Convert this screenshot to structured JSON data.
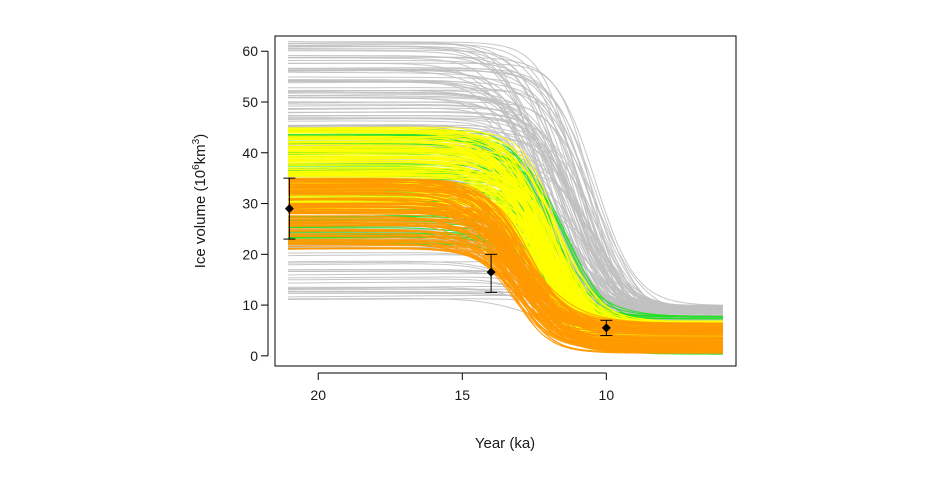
{
  "chart_data": {
    "type": "line",
    "title": "",
    "xlabel": "Year (ka)",
    "ylabel": {
      "prefix": "Ice volume (10",
      "exponent": "6",
      "unit": "km",
      "unit_exponent": "3",
      "suffix": ")"
    },
    "xlim": [
      21.5,
      5.5
    ],
    "ylim": [
      -2,
      63
    ],
    "x_ticks": [
      20,
      15,
      10
    ],
    "y_ticks": [
      0,
      10,
      20,
      30,
      40,
      50,
      60
    ],
    "grid": false,
    "legend": "none",
    "ensembles": [
      {
        "color": "#c0c0c0",
        "count": 170,
        "plateau_range": [
          11,
          62
        ],
        "final_range": [
          5,
          10
        ],
        "midpoint_range": [
          10.3,
          12.8
        ],
        "opacity": 0.9
      },
      {
        "color": "#22e022",
        "count": 70,
        "plateau_range": [
          22,
          45
        ],
        "final_range": [
          0.3,
          8
        ],
        "midpoint_range": [
          11.3,
          12.6
        ],
        "opacity": 0.9
      },
      {
        "color": "#ffff00",
        "count": 140,
        "plateau_range": [
          28,
          45
        ],
        "final_range": [
          1,
          7
        ],
        "midpoint_range": [
          11.6,
          12.6
        ],
        "opacity": 0.9
      },
      {
        "color": "#ff9900",
        "count": 120,
        "plateau_range": [
          21,
          35
        ],
        "final_range": [
          0.5,
          6.5
        ],
        "midpoint_range": [
          12.6,
          13.4
        ],
        "opacity": 0.9
      }
    ],
    "observations": [
      {
        "x": 21,
        "y": 29,
        "lower": 23,
        "upper": 35
      },
      {
        "x": 14,
        "y": 16.5,
        "lower": 12.5,
        "upper": 20
      },
      {
        "x": 10,
        "y": 5.5,
        "lower": 4,
        "upper": 7
      }
    ]
  }
}
